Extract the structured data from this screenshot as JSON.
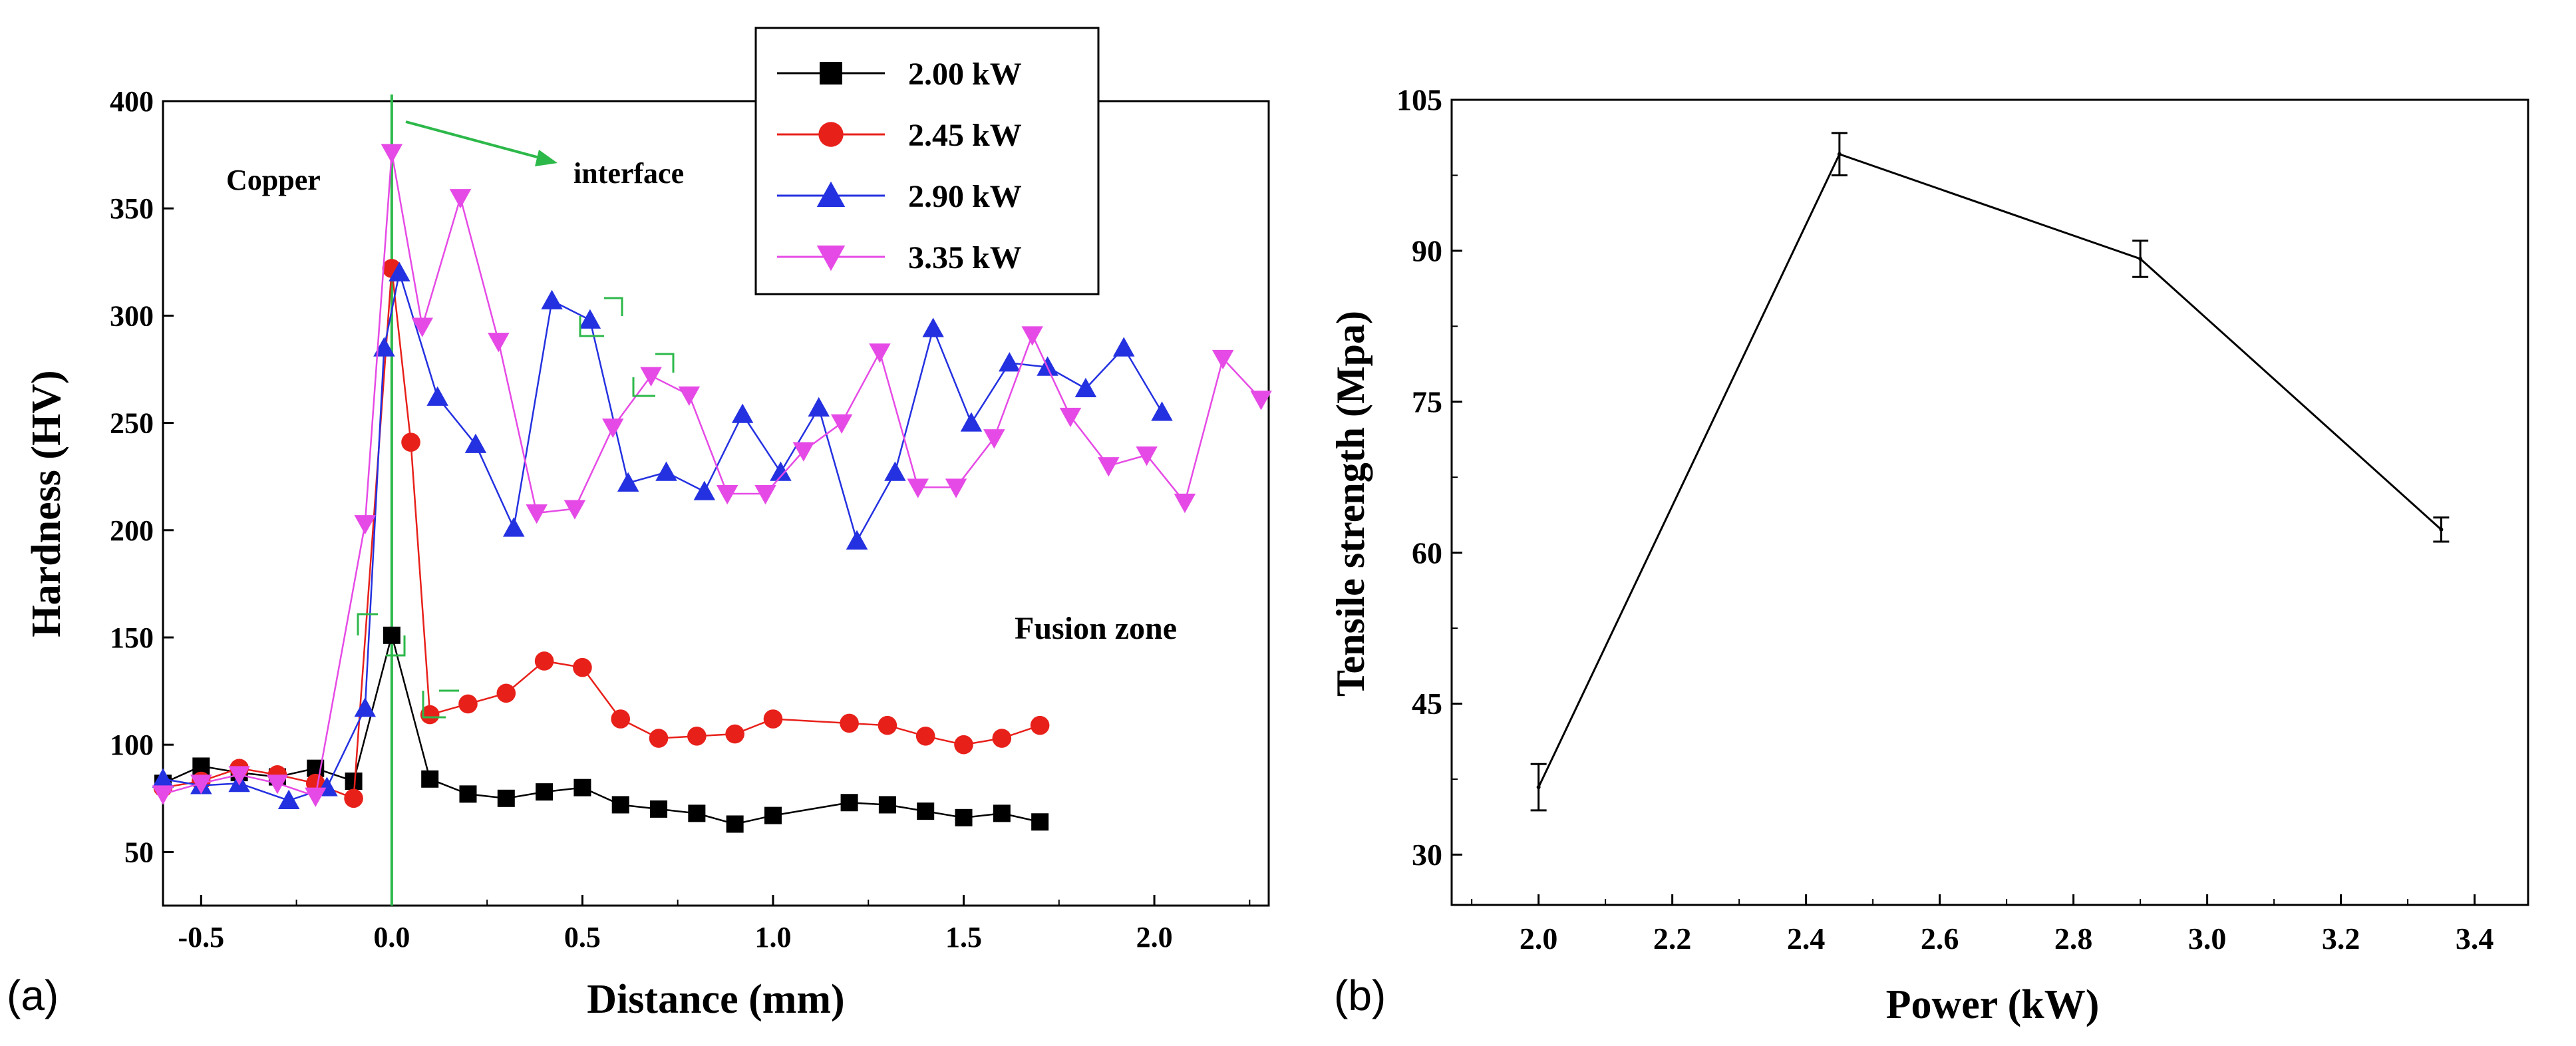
{
  "chart_data": [
    {
      "panel_label": "(a)",
      "type": "line",
      "xlabel": "Distance (mm)",
      "ylabel": "Hardness (HV)",
      "xlim": [
        -0.6,
        2.3
      ],
      "ylim": [
        25,
        400
      ],
      "x_ticks": [
        -0.5,
        0.0,
        0.5,
        1.0,
        1.5,
        2.0
      ],
      "x_tick_labels": [
        "-0.5",
        "0.0",
        "0.5",
        "1.0",
        "1.5",
        "2.0"
      ],
      "y_ticks": [
        50,
        100,
        150,
        200,
        250,
        300,
        350,
        400
      ],
      "y_tick_labels": [
        "50",
        "100",
        "150",
        "200",
        "250",
        "300",
        "350",
        "400"
      ],
      "legend_position": "top-center",
      "annotations": {
        "copper": "Copper",
        "interface": "interface",
        "fusion_zone": "Fusion zone",
        "interface_x": 0.0
      },
      "series": [
        {
          "name": "2.00 kW",
          "color": "#000000",
          "marker": "square",
          "x": [
            -0.6,
            -0.5,
            -0.4,
            -0.3,
            -0.2,
            -0.1,
            0.0,
            0.1,
            0.2,
            0.3,
            0.4,
            0.5,
            0.6,
            0.7,
            0.8,
            0.9,
            1.0,
            1.2,
            1.3,
            1.4,
            1.5,
            1.6,
            1.7
          ],
          "y": [
            82,
            90,
            87,
            85,
            89,
            83,
            151,
            84,
            77,
            75,
            78,
            80,
            72,
            70,
            68,
            63,
            67,
            73,
            72,
            69,
            66,
            68,
            64
          ]
        },
        {
          "name": "2.45 kW",
          "color": "#e8201a",
          "marker": "circle",
          "x": [
            -0.6,
            -0.5,
            -0.4,
            -0.3,
            -0.2,
            -0.1,
            0.0,
            0.05,
            0.1,
            0.2,
            0.3,
            0.4,
            0.5,
            0.6,
            0.7,
            0.8,
            0.9,
            1.0,
            1.2,
            1.3,
            1.4,
            1.5,
            1.6,
            1.7
          ],
          "y": [
            80,
            83,
            89,
            86,
            82,
            75,
            322,
            241,
            114,
            119,
            124,
            139,
            136,
            112,
            103,
            104,
            105,
            112,
            110,
            109,
            104,
            100,
            103,
            109
          ]
        },
        {
          "name": "2.90 kW",
          "color": "#2431e0",
          "marker": "triangle-up",
          "x": [
            -0.6,
            -0.5,
            -0.4,
            -0.27,
            -0.17,
            -0.07,
            -0.02,
            0.02,
            0.12,
            0.22,
            0.32,
            0.42,
            0.52,
            0.62,
            0.72,
            0.82,
            0.92,
            1.02,
            1.12,
            1.22,
            1.32,
            1.42,
            1.52,
            1.62,
            1.72,
            1.82,
            1.92,
            2.02
          ],
          "y": [
            84,
            81,
            82,
            74,
            80,
            117,
            285,
            320,
            262,
            240,
            201,
            307,
            298,
            222,
            227,
            218,
            254,
            227,
            257,
            195,
            227,
            294,
            250,
            278,
            276,
            266,
            285,
            255
          ]
        },
        {
          "name": "3.35 kW",
          "color": "#e64ae6",
          "marker": "triangle-down",
          "x": [
            -0.6,
            -0.5,
            -0.4,
            -0.3,
            -0.2,
            -0.07,
            0.0,
            0.08,
            0.18,
            0.28,
            0.38,
            0.48,
            0.58,
            0.68,
            0.78,
            0.88,
            0.98,
            1.08,
            1.18,
            1.28,
            1.38,
            1.48,
            1.58,
            1.68,
            1.78,
            1.88,
            1.98,
            2.08,
            2.18,
            2.28
          ],
          "y": [
            77,
            82,
            86,
            82,
            76,
            203,
            376,
            295,
            355,
            288,
            208,
            210,
            248,
            272,
            263,
            217,
            217,
            237,
            250,
            283,
            220,
            220,
            243,
            291,
            253,
            230,
            235,
            213,
            280,
            261
          ]
        }
      ]
    },
    {
      "panel_label": "(b)",
      "type": "line",
      "xlabel": "Power (kW)",
      "ylabel": "Tensile strength (Mpa)",
      "xlim": [
        1.87,
        3.48
      ],
      "ylim": [
        25,
        105
      ],
      "x_ticks": [
        2.0,
        2.2,
        2.4,
        2.6,
        2.8,
        3.0,
        3.2,
        3.4
      ],
      "x_tick_labels": [
        "2.0",
        "2.2",
        "2.4",
        "2.6",
        "2.8",
        "3.0",
        "3.2",
        "3.4"
      ],
      "y_ticks": [
        30,
        45,
        60,
        75,
        90,
        105
      ],
      "y_tick_labels": [
        "30",
        "45",
        "60",
        "75",
        "90",
        "105"
      ],
      "series": [
        {
          "name": "Tensile strength",
          "color": "#000000",
          "x": [
            2.0,
            2.45,
            2.9,
            3.35
          ],
          "y": [
            36.7,
            99.6,
            89.2,
            62.3
          ],
          "error": [
            2.3,
            2.1,
            1.8,
            1.2
          ]
        }
      ]
    }
  ]
}
